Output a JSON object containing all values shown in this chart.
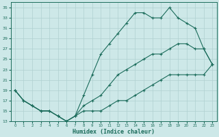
{
  "xlabel": "Humidex (Indice chaleur)",
  "background_color": "#cde8e8",
  "line_color": "#1a6b5a",
  "grid_color": "#afd0d0",
  "xlim": [
    -0.5,
    23.5
  ],
  "ylim": [
    13,
    36
  ],
  "yticks": [
    13,
    15,
    17,
    19,
    21,
    23,
    25,
    27,
    29,
    31,
    33,
    35
  ],
  "xticks": [
    0,
    1,
    2,
    3,
    4,
    5,
    6,
    7,
    8,
    9,
    10,
    11,
    12,
    13,
    14,
    15,
    16,
    17,
    18,
    19,
    20,
    21,
    22,
    23
  ],
  "line1_x": [
    0,
    1,
    2,
    3,
    4,
    5,
    6,
    7,
    8,
    9,
    10,
    11,
    12,
    13,
    14,
    15,
    16,
    17,
    18,
    19,
    20,
    21,
    22,
    23
  ],
  "line1_y": [
    19,
    17,
    16,
    15,
    15,
    14,
    13,
    14,
    18,
    22,
    26,
    28,
    30,
    32,
    34,
    34,
    33,
    33,
    35,
    33,
    32,
    31,
    27,
    24
  ],
  "line2_x": [
    0,
    1,
    2,
    3,
    4,
    5,
    6,
    7,
    8,
    9,
    10,
    11,
    12,
    13,
    14,
    15,
    16,
    17,
    18,
    19,
    20,
    21,
    22,
    23
  ],
  "line2_y": [
    19,
    17,
    16,
    15,
    15,
    14,
    13,
    14,
    16,
    17,
    18,
    20,
    22,
    23,
    24,
    25,
    26,
    26,
    27,
    28,
    28,
    27,
    27,
    24
  ],
  "line3_x": [
    0,
    1,
    2,
    3,
    4,
    5,
    6,
    7,
    8,
    9,
    10,
    11,
    12,
    13,
    14,
    15,
    16,
    17,
    18,
    19,
    20,
    21,
    22,
    23
  ],
  "line3_y": [
    19,
    17,
    16,
    15,
    15,
    14,
    13,
    14,
    15,
    15,
    15,
    16,
    17,
    17,
    18,
    19,
    20,
    21,
    22,
    22,
    22,
    22,
    22,
    24
  ]
}
